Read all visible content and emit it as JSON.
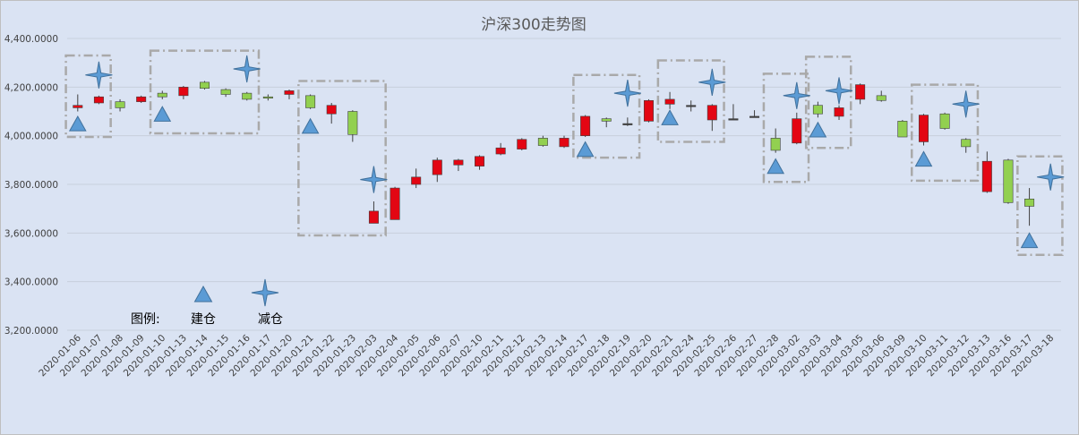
{
  "chart_data": {
    "type": "candlestick",
    "title": "沪深300走势图",
    "ylim": [
      3200,
      4400
    ],
    "yticks": [
      3200,
      3400,
      3600,
      3800,
      4000,
      4200,
      4400
    ],
    "ytick_labels": [
      "3,200.0000",
      "3,400.0000",
      "3,600.0000",
      "3,800.0000",
      "4,000.0000",
      "4,200.0000",
      "4,400.0000"
    ],
    "grid": true,
    "colors": {
      "up": "#e30613",
      "down": "#92d050",
      "neutral": "#404040",
      "grid": "#c8d0dc",
      "box": "#a9a9a9",
      "marker": "#5b9bd5",
      "marker_edge": "#41719c"
    },
    "candles": [
      {
        "date": "2020-01-06",
        "open": 4115,
        "close": 4125,
        "high": 4170,
        "low": 4100
      },
      {
        "date": "2020-01-07",
        "open": 4135,
        "close": 4160,
        "high": 4165,
        "low": 4130
      },
      {
        "date": "2020-01-08",
        "open": 4140,
        "close": 4115,
        "high": 4150,
        "low": 4100
      },
      {
        "date": "2020-01-09",
        "open": 4140,
        "close": 4160,
        "high": 4165,
        "low": 4135
      },
      {
        "date": "2020-01-10",
        "open": 4175,
        "close": 4160,
        "high": 4185,
        "low": 4150
      },
      {
        "date": "2020-01-13",
        "open": 4165,
        "close": 4200,
        "high": 4205,
        "low": 4150
      },
      {
        "date": "2020-01-14",
        "open": 4220,
        "close": 4195,
        "high": 4225,
        "low": 4190
      },
      {
        "date": "2020-01-15",
        "open": 4190,
        "close": 4170,
        "high": 4195,
        "low": 4160
      },
      {
        "date": "2020-01-16",
        "open": 4175,
        "close": 4150,
        "high": 4180,
        "low": 4145
      },
      {
        "date": "2020-01-17",
        "open": 4160,
        "close": 4155,
        "high": 4170,
        "low": 4145
      },
      {
        "date": "2020-01-20",
        "open": 4170,
        "close": 4185,
        "high": 4190,
        "low": 4150
      },
      {
        "date": "2020-01-21",
        "open": 4165,
        "close": 4115,
        "high": 4170,
        "low": 4110
      },
      {
        "date": "2020-01-22",
        "open": 4090,
        "close": 4125,
        "high": 4135,
        "low": 4050
      },
      {
        "date": "2020-01-23",
        "open": 4100,
        "close": 4005,
        "high": 4105,
        "low": 3975
      },
      {
        "date": "2020-02-03",
        "open": 3640,
        "close": 3690,
        "high": 3730,
        "low": 3640
      },
      {
        "date": "2020-02-04",
        "open": 3655,
        "close": 3785,
        "high": 3790,
        "low": 3655
      },
      {
        "date": "2020-02-05",
        "open": 3800,
        "close": 3830,
        "high": 3865,
        "low": 3785
      },
      {
        "date": "2020-02-06",
        "open": 3840,
        "close": 3900,
        "high": 3910,
        "low": 3810
      },
      {
        "date": "2020-02-07",
        "open": 3880,
        "close": 3900,
        "high": 3905,
        "low": 3855
      },
      {
        "date": "2020-02-10",
        "open": 3875,
        "close": 3915,
        "high": 3920,
        "low": 3860
      },
      {
        "date": "2020-02-11",
        "open": 3925,
        "close": 3950,
        "high": 3970,
        "low": 3920
      },
      {
        "date": "2020-02-12",
        "open": 3945,
        "close": 3985,
        "high": 3990,
        "low": 3940
      },
      {
        "date": "2020-02-13",
        "open": 3990,
        "close": 3960,
        "high": 4000,
        "low": 3955
      },
      {
        "date": "2020-02-14",
        "open": 3955,
        "close": 3990,
        "high": 4000,
        "low": 3950
      },
      {
        "date": "2020-02-17",
        "open": 4000,
        "close": 4080,
        "high": 4085,
        "low": 3995
      },
      {
        "date": "2020-02-18",
        "open": 4070,
        "close": 4060,
        "high": 4075,
        "low": 4035
      },
      {
        "date": "2020-02-19",
        "open": 4050,
        "close": 4050,
        "high": 4075,
        "low": 4040
      },
      {
        "date": "2020-02-20",
        "open": 4060,
        "close": 4145,
        "high": 4150,
        "low": 4055
      },
      {
        "date": "2020-02-21",
        "open": 4130,
        "close": 4150,
        "high": 4180,
        "low": 4110
      },
      {
        "date": "2020-02-24",
        "open": 4125,
        "close": 4125,
        "high": 4145,
        "low": 4100
      },
      {
        "date": "2020-02-25",
        "open": 4065,
        "close": 4125,
        "high": 4130,
        "low": 4020
      },
      {
        "date": "2020-02-26",
        "open": 4070,
        "close": 4070,
        "high": 4130,
        "low": 4065
      },
      {
        "date": "2020-02-27",
        "open": 4080,
        "close": 4080,
        "high": 4105,
        "low": 4075
      },
      {
        "date": "2020-02-28",
        "open": 3990,
        "close": 3940,
        "high": 4030,
        "low": 3930
      },
      {
        "date": "2020-03-02",
        "open": 3970,
        "close": 4070,
        "high": 4095,
        "low": 3965
      },
      {
        "date": "2020-03-03",
        "open": 4125,
        "close": 4090,
        "high": 4140,
        "low": 4075
      },
      {
        "date": "2020-03-04",
        "open": 4080,
        "close": 4115,
        "high": 4125,
        "low": 4065
      },
      {
        "date": "2020-03-05",
        "open": 4150,
        "close": 4210,
        "high": 4215,
        "low": 4130
      },
      {
        "date": "2020-03-06",
        "open": 4165,
        "close": 4145,
        "high": 4185,
        "low": 4140
      },
      {
        "date": "2020-03-09",
        "open": 4060,
        "close": 3995,
        "high": 4065,
        "low": 3995
      },
      {
        "date": "2020-03-10",
        "open": 3975,
        "close": 4085,
        "high": 4090,
        "low": 3960
      },
      {
        "date": "2020-03-11",
        "open": 4090,
        "close": 4030,
        "high": 4095,
        "low": 4025
      },
      {
        "date": "2020-03-12",
        "open": 3985,
        "close": 3955,
        "high": 3990,
        "low": 3930
      },
      {
        "date": "2020-03-13",
        "open": 3770,
        "close": 3895,
        "high": 3935,
        "low": 3765
      },
      {
        "date": "2020-03-16",
        "open": 3900,
        "close": 3725,
        "high": 3905,
        "low": 3720
      },
      {
        "date": "2020-03-17",
        "open": 3740,
        "close": 3710,
        "high": 3785,
        "low": 3630
      }
    ],
    "x_tick_labels": [
      "2020-01-06",
      "2020-01-07",
      "2020-01-08",
      "2020-01-09",
      "2020-01-10",
      "2020-01-13",
      "2020-01-14",
      "2020-01-15",
      "2020-01-16",
      "2020-01-17",
      "2020-01-20",
      "2020-01-21",
      "2020-01-22",
      "2020-01-23",
      "2020-02-03",
      "2020-02-04",
      "2020-02-05",
      "2020-02-06",
      "2020-02-07",
      "2020-02-10",
      "2020-02-11",
      "2020-02-12",
      "2020-02-13",
      "2020-02-14",
      "2020-02-17",
      "2020-02-18",
      "2020-02-19",
      "2020-02-20",
      "2020-02-21",
      "2020-02-24",
      "2020-02-25",
      "2020-02-26",
      "2020-02-27",
      "2020-02-28",
      "2020-03-02",
      "2020-03-03",
      "2020-03-04",
      "2020-03-05",
      "2020-03-06",
      "2020-03-09",
      "2020-03-10",
      "2020-03-11",
      "2020-03-12",
      "2020-03-13",
      "2020-03-16",
      "2020-03-17",
      "2020-03-18"
    ],
    "buy_markers": [
      {
        "date": "2020-01-06",
        "value": 4050
      },
      {
        "date": "2020-01-10",
        "value": 4090
      },
      {
        "date": "2020-01-21",
        "value": 4040
      },
      {
        "date": "2020-02-17",
        "value": 3945
      },
      {
        "date": "2020-02-21",
        "value": 4075
      },
      {
        "date": "2020-02-28",
        "value": 3875
      },
      {
        "date": "2020-03-03",
        "value": 4025
      },
      {
        "date": "2020-03-10",
        "value": 3905
      },
      {
        "date": "2020-03-17",
        "value": 3570
      }
    ],
    "sell_markers": [
      {
        "date": "2020-01-07",
        "value": 4250
      },
      {
        "date": "2020-01-16",
        "value": 4275
      },
      {
        "date": "2020-02-03",
        "value": 3820
      },
      {
        "date": "2020-02-19",
        "value": 4175
      },
      {
        "date": "2020-02-25",
        "value": 4220
      },
      {
        "date": "2020-03-02",
        "value": 4165
      },
      {
        "date": "2020-03-04",
        "value": 4185
      },
      {
        "date": "2020-03-12",
        "value": 4130
      },
      {
        "date": "2020-03-18",
        "value": 3830
      }
    ],
    "highlight_boxes": [
      {
        "from": "2020-01-06",
        "to": "2020-01-07",
        "top": 4330,
        "bottom": 3995
      },
      {
        "from": "2020-01-10",
        "to": "2020-01-16",
        "top": 4350,
        "bottom": 4010
      },
      {
        "from": "2020-01-21",
        "to": "2020-02-03",
        "top": 4225,
        "bottom": 3590
      },
      {
        "from": "2020-02-17",
        "to": "2020-02-19",
        "top": 4250,
        "bottom": 3910
      },
      {
        "from": "2020-02-21",
        "to": "2020-02-25",
        "top": 4310,
        "bottom": 3975
      },
      {
        "from": "2020-02-28",
        "to": "2020-03-02",
        "top": 4255,
        "bottom": 3810
      },
      {
        "from": "2020-03-03",
        "to": "2020-03-04",
        "top": 4325,
        "bottom": 3950
      },
      {
        "from": "2020-03-10",
        "to": "2020-03-12",
        "top": 4210,
        "bottom": 3815
      },
      {
        "from": "2020-03-17",
        "to": "2020-03-18",
        "top": 3915,
        "bottom": 3510
      }
    ],
    "legend": {
      "title": "图例:",
      "items": [
        {
          "label": "建仓",
          "marker": "triangle"
        },
        {
          "label": "减仓",
          "marker": "star"
        }
      ],
      "position": "bottom-left"
    }
  }
}
